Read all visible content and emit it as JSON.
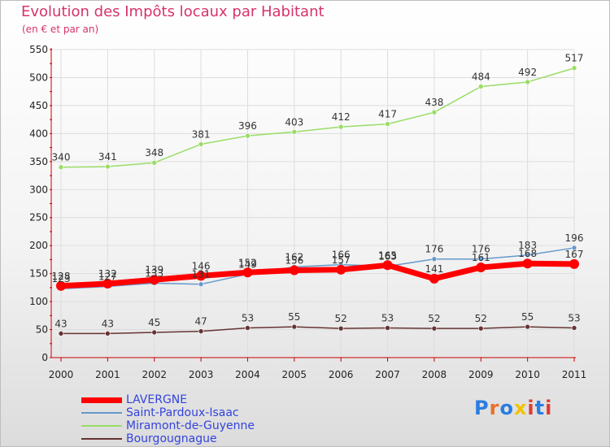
{
  "title": "Evolution des Impôts locaux par Habitant",
  "subtitle": "(en € et par an)",
  "logo": {
    "text": "Proxiti"
  },
  "colors": {
    "title": "#d6336c",
    "axis": "#cc0000",
    "grid": "#dddddd",
    "legend_text": "#3344dd",
    "logo": [
      "#2a7de1",
      "#e8702a",
      "#2a7de1",
      "#f2c200",
      "#e03c31",
      "#2a7de1",
      "#e03c31"
    ]
  },
  "chart_data": {
    "type": "line",
    "title": "Evolution des Impôts locaux par Habitant",
    "subtitle": "(en € et par an)",
    "xlabel": "",
    "ylabel": "",
    "categories": [
      "2000",
      "2001",
      "2002",
      "2003",
      "2004",
      "2005",
      "2006",
      "2007",
      "2008",
      "2009",
      "2010",
      "2011"
    ],
    "ylim": [
      0,
      550
    ],
    "yticks": [
      0,
      50,
      100,
      150,
      200,
      250,
      300,
      350,
      400,
      450,
      500,
      550
    ],
    "grid": true,
    "legend_position": "bottom-left",
    "series": [
      {
        "name": "LAVERGNE",
        "color": "#ff0000",
        "values": [
          128,
          132,
          139,
          146,
          152,
          156,
          157,
          165,
          141,
          161,
          168,
          167
        ]
      },
      {
        "name": "Saint-Pardoux-Isaac",
        "color": "#6699cc",
        "values": [
          123,
          127,
          133,
          131,
          149,
          162,
          166,
          163,
          176,
          176,
          183,
          196
        ]
      },
      {
        "name": "Miramont-de-Guyenne",
        "color": "#99dd66",
        "values": [
          340,
          341,
          348,
          381,
          396,
          403,
          412,
          417,
          438,
          484,
          492,
          517
        ]
      },
      {
        "name": "Bourgougnague",
        "color": "#663333",
        "values": [
          43,
          43,
          45,
          47,
          53,
          55,
          52,
          53,
          52,
          52,
          55,
          53
        ]
      }
    ]
  }
}
